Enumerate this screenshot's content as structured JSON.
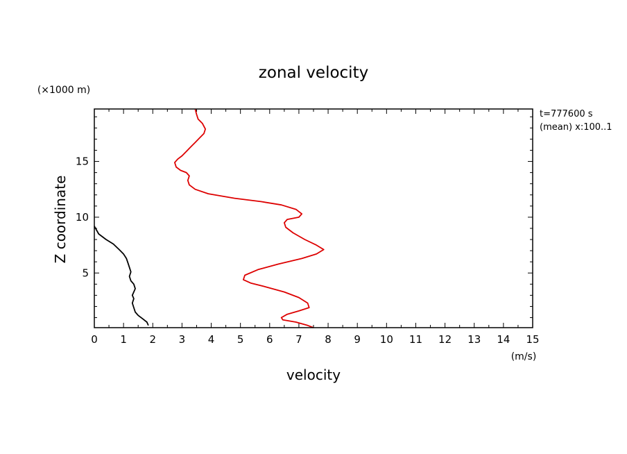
{
  "chart_data": {
    "type": "line",
    "title": "zonal velocity",
    "xlabel": "velocity",
    "x_unit": "(m/s)",
    "ylabel": "Z coordinate",
    "y_unit": "(×1000 m)",
    "info_lines": [
      "t=777600 s",
      "(mean) x:100..1"
    ],
    "xlim": [
      0,
      15
    ],
    "ylim": [
      0.1,
      19.7
    ],
    "x_ticks": [
      "0",
      "1",
      "2",
      "3",
      "4",
      "5",
      "6",
      "7",
      "8",
      "9",
      "10",
      "11",
      "12",
      "13",
      "14",
      "15"
    ],
    "y_ticks": [
      "5",
      "10",
      "15"
    ],
    "grid": false,
    "series": [
      {
        "color": "#000000",
        "points": [
          [
            1.85,
            0.3
          ],
          [
            1.8,
            0.6
          ],
          [
            1.65,
            0.9
          ],
          [
            1.5,
            1.2
          ],
          [
            1.4,
            1.5
          ],
          [
            1.35,
            1.9
          ],
          [
            1.3,
            2.3
          ],
          [
            1.35,
            2.7
          ],
          [
            1.3,
            3.0
          ],
          [
            1.35,
            3.3
          ],
          [
            1.4,
            3.6
          ],
          [
            1.35,
            4.0
          ],
          [
            1.25,
            4.3
          ],
          [
            1.2,
            4.7
          ],
          [
            1.25,
            5.1
          ],
          [
            1.2,
            5.5
          ],
          [
            1.15,
            5.9
          ],
          [
            1.1,
            6.3
          ],
          [
            1.0,
            6.7
          ],
          [
            0.85,
            7.1
          ],
          [
            0.65,
            7.6
          ],
          [
            0.4,
            8.0
          ],
          [
            0.15,
            8.5
          ],
          [
            0.0,
            9.2
          ]
        ]
      },
      {
        "color": "#dd0000",
        "points": [
          [
            7.5,
            0.1
          ],
          [
            7.3,
            0.3
          ],
          [
            6.9,
            0.6
          ],
          [
            6.45,
            0.8
          ],
          [
            6.4,
            1.0
          ],
          [
            6.6,
            1.3
          ],
          [
            7.0,
            1.6
          ],
          [
            7.35,
            1.9
          ],
          [
            7.3,
            2.3
          ],
          [
            7.0,
            2.8
          ],
          [
            6.5,
            3.3
          ],
          [
            5.8,
            3.8
          ],
          [
            5.35,
            4.1
          ],
          [
            5.1,
            4.4
          ],
          [
            5.15,
            4.8
          ],
          [
            5.6,
            5.3
          ],
          [
            6.3,
            5.8
          ],
          [
            7.1,
            6.3
          ],
          [
            7.6,
            6.7
          ],
          [
            7.85,
            7.1
          ],
          [
            7.6,
            7.5
          ],
          [
            7.2,
            8.0
          ],
          [
            6.8,
            8.6
          ],
          [
            6.55,
            9.1
          ],
          [
            6.5,
            9.5
          ],
          [
            6.6,
            9.8
          ],
          [
            7.0,
            10.0
          ],
          [
            7.1,
            10.3
          ],
          [
            6.9,
            10.7
          ],
          [
            6.4,
            11.1
          ],
          [
            5.7,
            11.4
          ],
          [
            4.8,
            11.7
          ],
          [
            3.9,
            12.1
          ],
          [
            3.45,
            12.5
          ],
          [
            3.25,
            12.9
          ],
          [
            3.2,
            13.3
          ],
          [
            3.25,
            13.7
          ],
          [
            3.15,
            14.0
          ],
          [
            2.95,
            14.2
          ],
          [
            2.8,
            14.5
          ],
          [
            2.75,
            14.9
          ],
          [
            2.85,
            15.2
          ],
          [
            3.0,
            15.5
          ],
          [
            3.15,
            15.9
          ],
          [
            3.3,
            16.3
          ],
          [
            3.45,
            16.7
          ],
          [
            3.6,
            17.1
          ],
          [
            3.75,
            17.5
          ],
          [
            3.8,
            17.9
          ],
          [
            3.7,
            18.4
          ],
          [
            3.55,
            18.8
          ],
          [
            3.5,
            19.2
          ],
          [
            3.45,
            19.7
          ]
        ]
      }
    ]
  }
}
